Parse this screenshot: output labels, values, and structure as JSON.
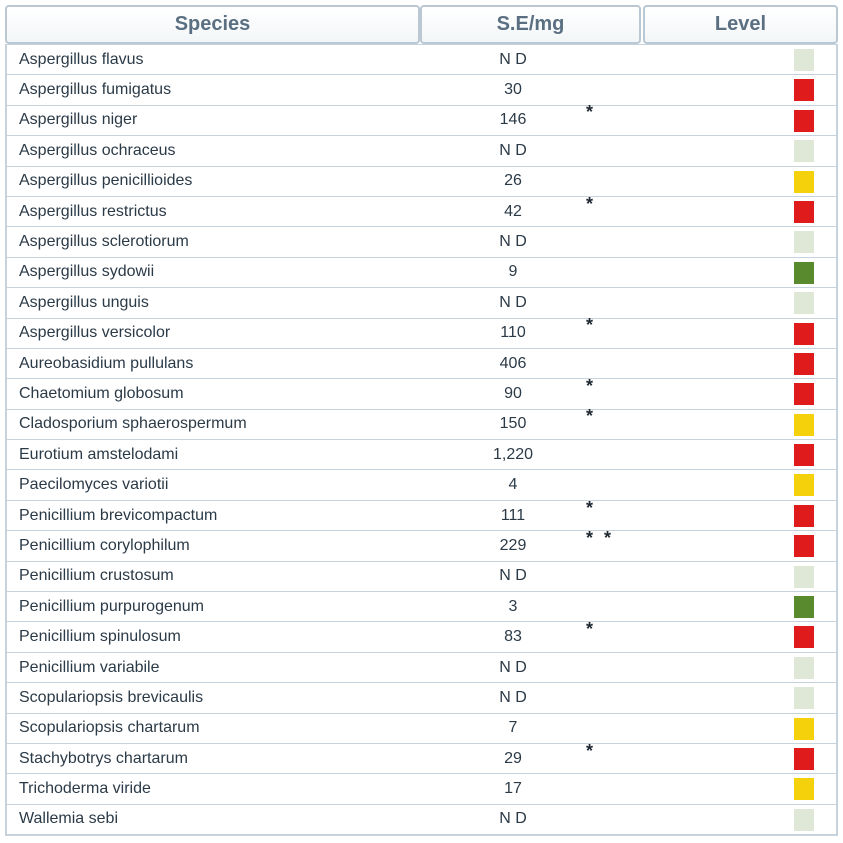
{
  "header": {
    "species": "Species",
    "se_mg": "S.E/mg",
    "level": "Level"
  },
  "level_colors": {
    "none": "#dfe8d6",
    "high": "#e01b1b",
    "medium": "#f4d10b",
    "low": "#5a8a2e"
  },
  "rows": [
    {
      "species": "Aspergillus flavus",
      "value": "N D",
      "note": "",
      "level": "none"
    },
    {
      "species": "Aspergillus fumigatus",
      "value": "30",
      "note": "",
      "level": "high"
    },
    {
      "species": "Aspergillus niger",
      "value": "146",
      "note": "*",
      "level": "high"
    },
    {
      "species": "Aspergillus ochraceus",
      "value": "N D",
      "note": "",
      "level": "none"
    },
    {
      "species": "Aspergillus penicillioides",
      "value": "26",
      "note": "",
      "level": "medium"
    },
    {
      "species": "Aspergillus restrictus",
      "value": "42",
      "note": "*",
      "level": "high"
    },
    {
      "species": "Aspergillus sclerotiorum",
      "value": "N D",
      "note": "",
      "level": "none"
    },
    {
      "species": "Aspergillus sydowii",
      "value": "9",
      "note": "",
      "level": "low"
    },
    {
      "species": "Aspergillus unguis",
      "value": "N D",
      "note": "",
      "level": "none"
    },
    {
      "species": "Aspergillus versicolor",
      "value": "110",
      "note": "*",
      "level": "high"
    },
    {
      "species": "Aureobasidium pullulans",
      "value": "406",
      "note": "",
      "level": "high"
    },
    {
      "species": "Chaetomium globosum",
      "value": "90",
      "note": "*",
      "level": "high"
    },
    {
      "species": "Cladosporium sphaerospermum",
      "value": "150",
      "note": "*",
      "level": "medium"
    },
    {
      "species": "Eurotium amstelodami",
      "value": "1,220",
      "note": "",
      "level": "high"
    },
    {
      "species": "Paecilomyces variotii",
      "value": "4",
      "note": "",
      "level": "medium"
    },
    {
      "species": "Penicillium brevicompactum",
      "value": "111",
      "note": "*",
      "level": "high"
    },
    {
      "species": "Penicillium corylophilum",
      "value": "229",
      "note": "* *",
      "level": "high"
    },
    {
      "species": "Penicillium crustosum",
      "value": "N D",
      "note": "",
      "level": "none"
    },
    {
      "species": "Penicillium purpurogenum",
      "value": "3",
      "note": "",
      "level": "low"
    },
    {
      "species": "Penicillium spinulosum",
      "value": "83",
      "note": "*",
      "level": "high"
    },
    {
      "species": "Penicillium variabile",
      "value": "N D",
      "note": "",
      "level": "none"
    },
    {
      "species": "Scopulariopsis brevicaulis",
      "value": "N D",
      "note": "",
      "level": "none"
    },
    {
      "species": "Scopulariopsis chartarum",
      "value": "7",
      "note": "",
      "level": "medium"
    },
    {
      "species": "Stachybotrys chartarum",
      "value": "29",
      "note": "*",
      "level": "high"
    },
    {
      "species": "Trichoderma viride",
      "value": "17",
      "note": "",
      "level": "medium"
    },
    {
      "species": "Wallemia sebi",
      "value": "N D",
      "note": "",
      "level": "none"
    }
  ]
}
